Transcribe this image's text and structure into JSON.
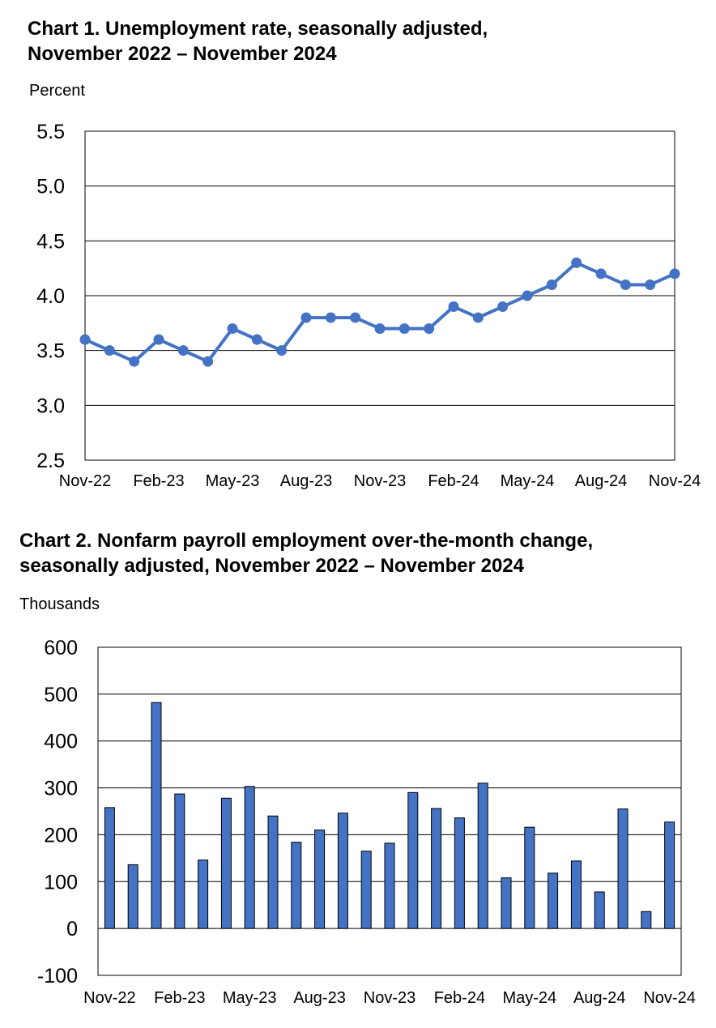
{
  "chart_data": [
    {
      "type": "line",
      "title": "Chart 1. Unemployment rate, seasonally adjusted, November 2022 – November 2024",
      "title_lines": [
        "Chart 1. Unemployment rate, seasonally adjusted,",
        "November 2022 – November 2024"
      ],
      "ylabel": "Percent",
      "ylim": [
        2.5,
        5.5
      ],
      "yticks": [
        "5.5",
        "5.0",
        "4.5",
        "4.0",
        "3.5",
        "3.0",
        "2.5"
      ],
      "x_tick_labels": [
        "Nov-22",
        "Feb-23",
        "May-23",
        "Aug-23",
        "Nov-23",
        "Feb-24",
        "May-24",
        "Aug-24",
        "Nov-24"
      ],
      "x": [
        "Nov-22",
        "Dec-22",
        "Jan-23",
        "Feb-23",
        "Mar-23",
        "Apr-23",
        "May-23",
        "Jun-23",
        "Jul-23",
        "Aug-23",
        "Sep-23",
        "Oct-23",
        "Nov-23",
        "Dec-23",
        "Jan-24",
        "Feb-24",
        "Mar-24",
        "Apr-24",
        "May-24",
        "Jun-24",
        "Jul-24",
        "Aug-24",
        "Sep-24",
        "Oct-24",
        "Nov-24"
      ],
      "values": [
        3.6,
        3.5,
        3.4,
        3.6,
        3.5,
        3.4,
        3.7,
        3.6,
        3.5,
        3.8,
        3.8,
        3.8,
        3.7,
        3.7,
        3.7,
        3.9,
        3.8,
        3.9,
        4.0,
        4.1,
        4.3,
        4.2,
        4.1,
        4.1,
        4.2
      ],
      "color": "#4472C4",
      "grid": true
    },
    {
      "type": "bar",
      "title": "Chart 2. Nonfarm payroll employment over-the-month change, seasonally adjusted, November 2022 – November 2024",
      "title_lines": [
        "Chart 2. Nonfarm payroll employment over-the-month change,",
        "seasonally adjusted, November 2022 – November 2024"
      ],
      "ylabel": "Thousands",
      "ylim": [
        -100,
        600
      ],
      "yticks": [
        "600",
        "500",
        "400",
        "300",
        "200",
        "100",
        "0",
        "-100"
      ],
      "x_tick_labels": [
        "Nov-22",
        "Feb-23",
        "May-23",
        "Aug-23",
        "Nov-23",
        "Feb-24",
        "May-24",
        "Aug-24",
        "Nov-24"
      ],
      "categories": [
        "Nov-22",
        "Dec-22",
        "Jan-23",
        "Feb-23",
        "Mar-23",
        "Apr-23",
        "May-23",
        "Jun-23",
        "Jul-23",
        "Aug-23",
        "Sep-23",
        "Oct-23",
        "Nov-23",
        "Dec-23",
        "Jan-24",
        "Feb-24",
        "Mar-24",
        "Apr-24",
        "May-24",
        "Jun-24",
        "Jul-24",
        "Aug-24",
        "Sep-24",
        "Oct-24",
        "Nov-24"
      ],
      "values": [
        258,
        136,
        482,
        287,
        146,
        278,
        303,
        240,
        184,
        210,
        246,
        165,
        182,
        290,
        256,
        236,
        310,
        108,
        216,
        118,
        144,
        78,
        255,
        36,
        227
      ],
      "color": "#4472C4",
      "grid": true
    }
  ]
}
